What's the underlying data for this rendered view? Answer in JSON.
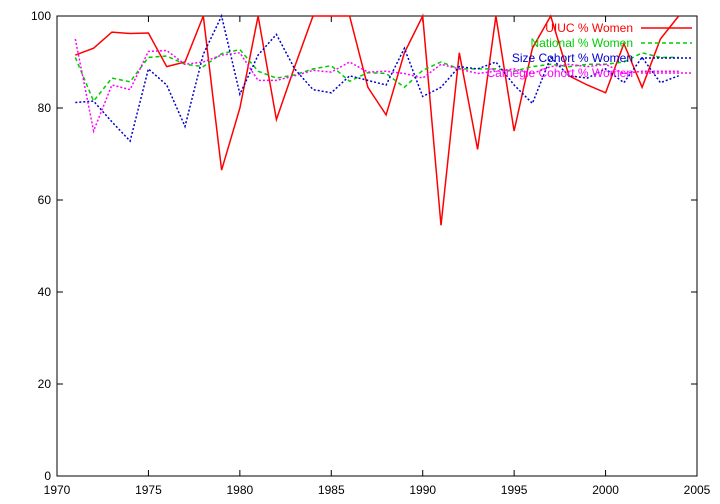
{
  "chart_data": {
    "type": "line",
    "title": "",
    "xlabel": "",
    "ylabel": "",
    "xlim": [
      1970,
      2005
    ],
    "ylim": [
      0,
      100
    ],
    "xticks": [
      1970,
      1975,
      1980,
      1985,
      1990,
      1995,
      2000,
      2005
    ],
    "yticks": [
      0,
      20,
      40,
      60,
      80,
      100
    ],
    "grid": false,
    "legend": "top-right",
    "x": [
      1971,
      1972,
      1973,
      1974,
      1975,
      1976,
      1977,
      1978,
      1979,
      1980,
      1981,
      1982,
      1983,
      1984,
      1985,
      1986,
      1987,
      1988,
      1989,
      1990,
      1991,
      1992,
      1993,
      1994,
      1995,
      1996,
      1997,
      1998,
      1999,
      2000,
      2001,
      2002,
      2003,
      2004
    ],
    "series": [
      {
        "name": "UIUC % Women",
        "color": "#ff0000",
        "dash": "solid",
        "values": [
          91.5,
          93,
          96.5,
          96.2,
          96.3,
          89,
          90,
          100,
          66.5,
          80,
          100,
          77.5,
          89,
          100,
          100,
          100,
          84.5,
          78.5,
          92,
          100,
          54.5,
          92,
          71,
          100,
          75,
          93,
          100,
          87,
          85,
          83.3,
          94,
          84.5,
          95,
          100
        ]
      },
      {
        "name": "National % Women",
        "color": "#00cc00",
        "dash": "dashed",
        "values": [
          91,
          81.5,
          86.5,
          85.7,
          91,
          91.3,
          89.5,
          89,
          91.8,
          92.7,
          88,
          86.5,
          87.2,
          88.5,
          89.2,
          85.8,
          87.7,
          87.5,
          84.5,
          88.2,
          90,
          88.5,
          88.5,
          88.5,
          88,
          89,
          89.5,
          89,
          89.5,
          89.5,
          90,
          92,
          91,
          91
        ]
      },
      {
        "name": "Size Cohort % Women",
        "color": "#0000cc",
        "dash": "dotted",
        "values": [
          81.2,
          81.5,
          77,
          72.8,
          88.5,
          85,
          76,
          91.7,
          100,
          83,
          91.5,
          96,
          88.5,
          84,
          83.3,
          87,
          86,
          85,
          93,
          82.5,
          84.5,
          89,
          88.5,
          90,
          85,
          81,
          91,
          87,
          86.5,
          88.5,
          85.5,
          91,
          85.5,
          87
        ]
      },
      {
        "name": "Carnegie Cohort % Women",
        "color": "#ff00ff",
        "dash": "dotted",
        "values": [
          95,
          75,
          85,
          84,
          92.3,
          92.5,
          89.5,
          90,
          91.5,
          92,
          86,
          86,
          87,
          88.2,
          87.8,
          90,
          87.8,
          88,
          87.5,
          86.5,
          89.5,
          88.5,
          87.5,
          88,
          88.5,
          87.5,
          89,
          89.5,
          89,
          89.5,
          87.5,
          88,
          88,
          88
        ]
      }
    ]
  }
}
